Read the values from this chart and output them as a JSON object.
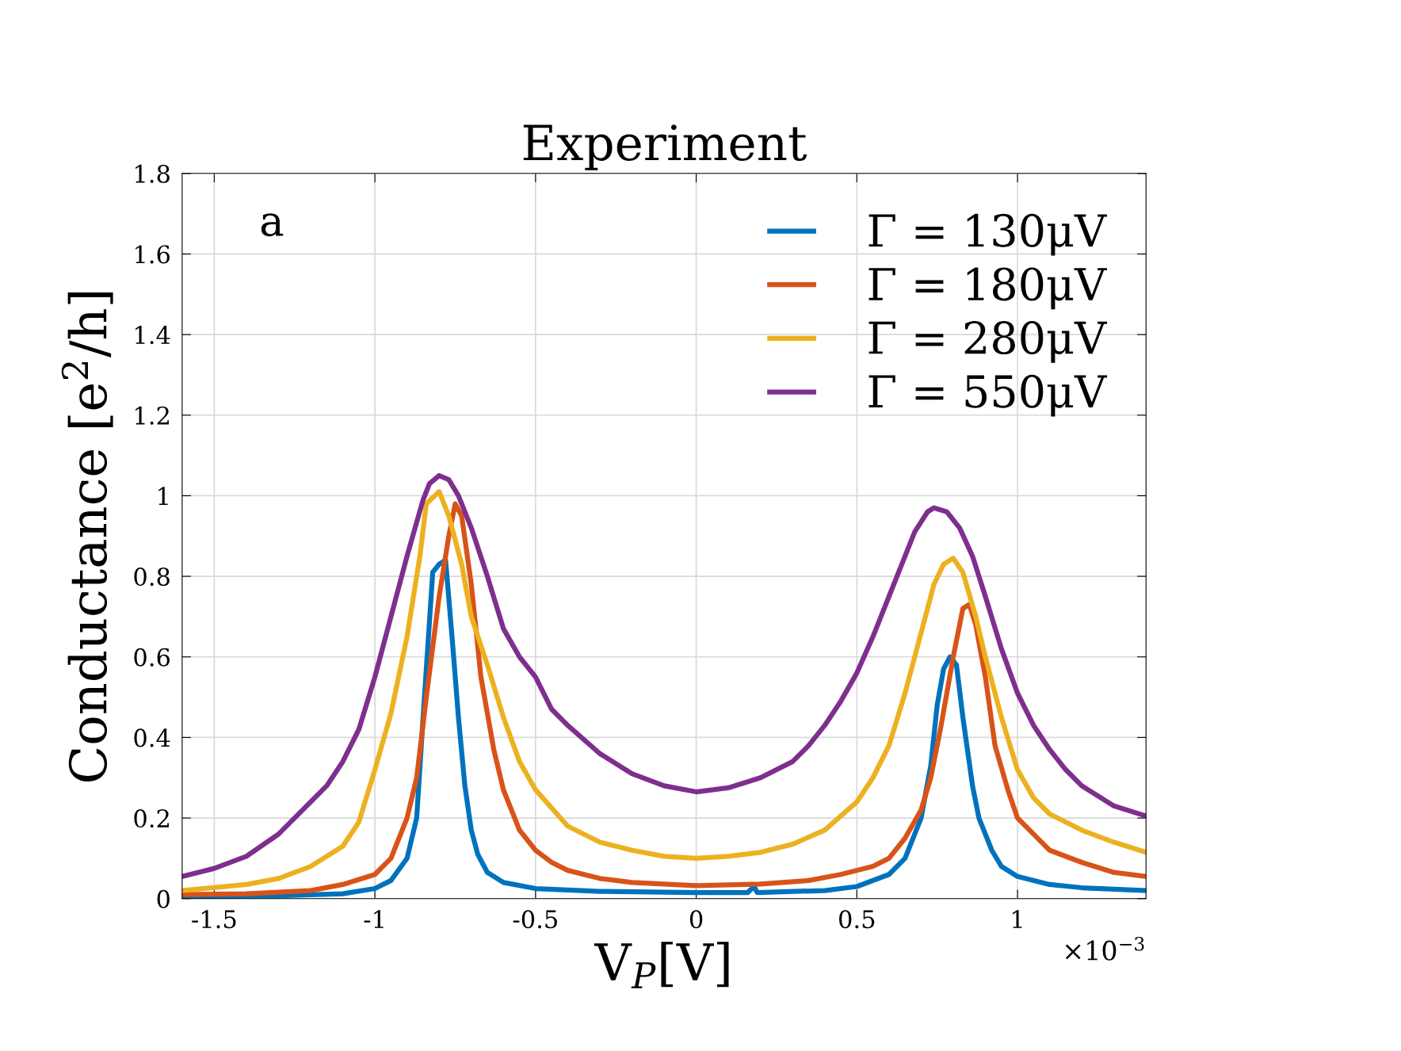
{
  "chart_data": {
    "type": "line",
    "title": "Experiment",
    "xlabel": "V$_{P}$[V]",
    "ylabel": "Conductance [e$^{2}$/h]",
    "annotations": [
      "a",
      "×10$^{−3}$"
    ],
    "xlim": [
      -1.6,
      1.4
    ],
    "xticks": [
      -1.5,
      -1,
      -0.5,
      0,
      0.5,
      1
    ],
    "ylim": [
      0,
      1.8
    ],
    "yticks": [
      0,
      0.2,
      0.4,
      0.6,
      0.8,
      1,
      1.2,
      1.4,
      1.6,
      1.8
    ],
    "grid": true,
    "legend": "top right",
    "line_style": "solid",
    "marker": "none",
    "series": [
      {
        "name": "Γ = 130μV",
        "color": "#0072bd",
        "x": [
          -1.6,
          -1.3,
          -1.1,
          -1.0,
          -0.95,
          -0.9,
          -0.87,
          -0.85,
          -0.82,
          -0.8,
          -0.78,
          -0.76,
          -0.74,
          -0.72,
          -0.7,
          -0.68,
          -0.65,
          -0.6,
          -0.5,
          -0.3,
          0,
          0.16,
          0.18,
          0.19,
          0.4,
          0.5,
          0.6,
          0.65,
          0.7,
          0.73,
          0.75,
          0.77,
          0.79,
          0.81,
          0.83,
          0.86,
          0.88,
          0.92,
          0.95,
          1.0,
          1.1,
          1.2,
          1.4
        ],
        "values": [
          0.005,
          0.007,
          0.012,
          0.025,
          0.045,
          0.1,
          0.2,
          0.45,
          0.81,
          0.83,
          0.84,
          0.65,
          0.45,
          0.28,
          0.17,
          0.11,
          0.065,
          0.04,
          0.025,
          0.018,
          0.015,
          0.015,
          0.03,
          0.015,
          0.02,
          0.03,
          0.06,
          0.1,
          0.2,
          0.33,
          0.48,
          0.57,
          0.6,
          0.58,
          0.45,
          0.28,
          0.2,
          0.12,
          0.08,
          0.055,
          0.035,
          0.027,
          0.02
        ]
      },
      {
        "name": "Γ = 180μV",
        "color": "#d95319",
        "x": [
          -1.6,
          -1.4,
          -1.2,
          -1.1,
          -1.0,
          -0.95,
          -0.9,
          -0.87,
          -0.84,
          -0.8,
          -0.77,
          -0.75,
          -0.73,
          -0.7,
          -0.67,
          -0.63,
          -0.6,
          -0.55,
          -0.5,
          -0.45,
          -0.4,
          -0.3,
          -0.2,
          0,
          0.2,
          0.35,
          0.45,
          0.55,
          0.6,
          0.65,
          0.7,
          0.73,
          0.76,
          0.8,
          0.83,
          0.85,
          0.87,
          0.9,
          0.93,
          0.97,
          1.0,
          1.05,
          1.1,
          1.2,
          1.3,
          1.4
        ],
        "values": [
          0.01,
          0.012,
          0.02,
          0.035,
          0.06,
          0.1,
          0.2,
          0.3,
          0.5,
          0.75,
          0.9,
          0.98,
          0.95,
          0.78,
          0.55,
          0.37,
          0.27,
          0.17,
          0.12,
          0.09,
          0.07,
          0.05,
          0.04,
          0.032,
          0.036,
          0.045,
          0.06,
          0.08,
          0.1,
          0.15,
          0.22,
          0.3,
          0.42,
          0.6,
          0.72,
          0.73,
          0.68,
          0.55,
          0.38,
          0.27,
          0.2,
          0.16,
          0.12,
          0.09,
          0.065,
          0.055
        ]
      },
      {
        "name": "Γ = 280μV",
        "color": "#edb120",
        "x": [
          -1.6,
          -1.4,
          -1.3,
          -1.2,
          -1.1,
          -1.05,
          -1.0,
          -0.95,
          -0.9,
          -0.86,
          -0.84,
          -0.8,
          -0.77,
          -0.73,
          -0.7,
          -0.65,
          -0.6,
          -0.55,
          -0.5,
          -0.4,
          -0.3,
          -0.2,
          -0.1,
          0,
          0.1,
          0.2,
          0.3,
          0.4,
          0.5,
          0.55,
          0.6,
          0.65,
          0.7,
          0.74,
          0.77,
          0.8,
          0.83,
          0.87,
          0.9,
          0.95,
          1.0,
          1.05,
          1.1,
          1.2,
          1.3,
          1.4
        ],
        "values": [
          0.02,
          0.035,
          0.05,
          0.08,
          0.13,
          0.19,
          0.32,
          0.46,
          0.65,
          0.85,
          0.98,
          1.01,
          0.95,
          0.83,
          0.7,
          0.58,
          0.45,
          0.34,
          0.27,
          0.18,
          0.14,
          0.12,
          0.105,
          0.1,
          0.105,
          0.115,
          0.135,
          0.17,
          0.24,
          0.3,
          0.38,
          0.51,
          0.66,
          0.78,
          0.83,
          0.845,
          0.81,
          0.7,
          0.6,
          0.45,
          0.32,
          0.25,
          0.21,
          0.17,
          0.14,
          0.115
        ]
      },
      {
        "name": "Γ = 550μV",
        "color": "#7e2f8e",
        "x": [
          -1.6,
          -1.5,
          -1.4,
          -1.3,
          -1.2,
          -1.15,
          -1.1,
          -1.05,
          -1.0,
          -0.95,
          -0.9,
          -0.85,
          -0.83,
          -0.8,
          -0.77,
          -0.74,
          -0.7,
          -0.65,
          -0.6,
          -0.55,
          -0.5,
          -0.45,
          -0.4,
          -0.3,
          -0.2,
          -0.1,
          0,
          0.1,
          0.2,
          0.3,
          0.35,
          0.4,
          0.45,
          0.5,
          0.55,
          0.6,
          0.65,
          0.68,
          0.72,
          0.74,
          0.78,
          0.82,
          0.86,
          0.9,
          0.95,
          1.0,
          1.05,
          1.1,
          1.15,
          1.2,
          1.3,
          1.4
        ],
        "values": [
          0.055,
          0.075,
          0.105,
          0.16,
          0.24,
          0.28,
          0.34,
          0.42,
          0.55,
          0.7,
          0.85,
          0.99,
          1.03,
          1.05,
          1.04,
          1.0,
          0.92,
          0.8,
          0.67,
          0.6,
          0.55,
          0.47,
          0.43,
          0.36,
          0.31,
          0.28,
          0.265,
          0.275,
          0.3,
          0.34,
          0.38,
          0.43,
          0.49,
          0.56,
          0.65,
          0.75,
          0.85,
          0.91,
          0.96,
          0.97,
          0.96,
          0.92,
          0.85,
          0.75,
          0.62,
          0.51,
          0.43,
          0.37,
          0.32,
          0.28,
          0.23,
          0.205
        ]
      }
    ]
  }
}
